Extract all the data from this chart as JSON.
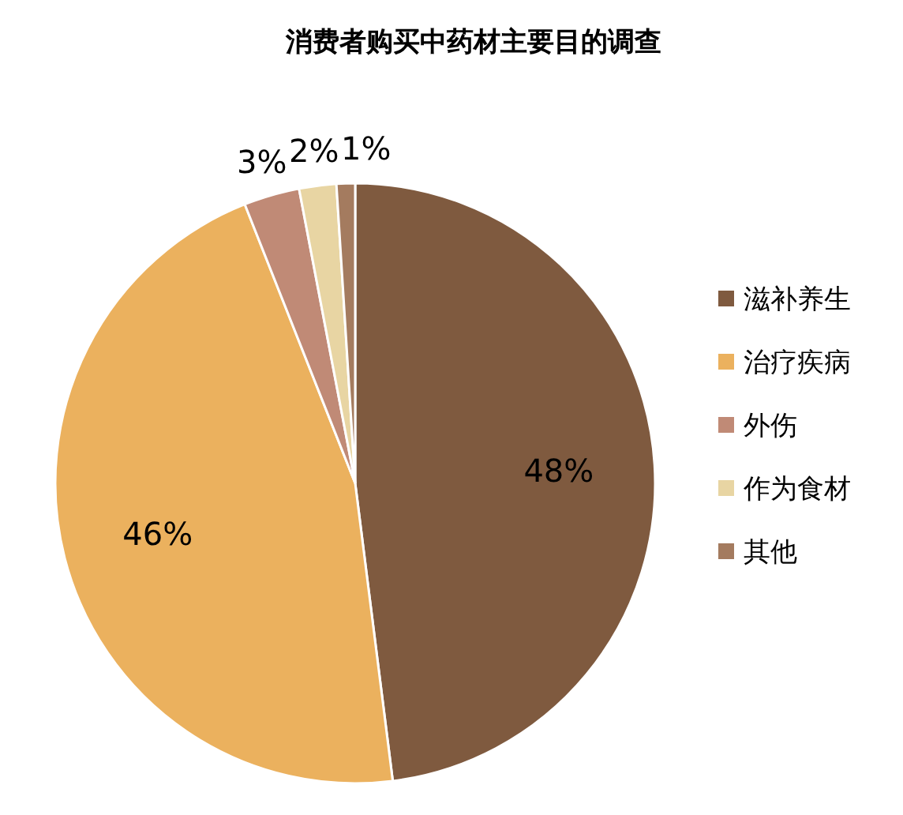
{
  "chart_data": {
    "type": "pie",
    "title": "消费者购买中药材主要目的调查",
    "categories": [
      "滋补养生",
      "治疗疾病",
      "外伤",
      "作为食材",
      "其他"
    ],
    "values": [
      48,
      46,
      3,
      2,
      1
    ],
    "colors": [
      "#7f5a3f",
      "#ebb15e",
      "#c08a76",
      "#e8d5a3",
      "#a47b5f"
    ],
    "value_labels": [
      "48%",
      "46%",
      "3%",
      "2%",
      "1%"
    ],
    "legend": "right"
  }
}
